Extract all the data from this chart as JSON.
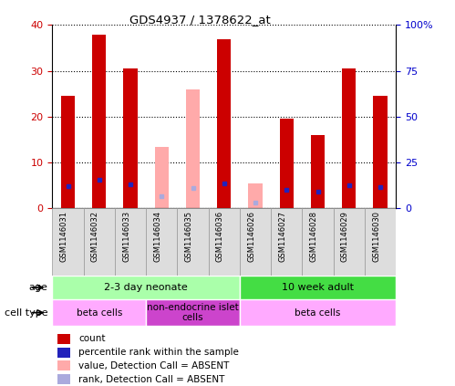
{
  "title": "GDS4937 / 1378622_at",
  "samples": [
    "GSM1146031",
    "GSM1146032",
    "GSM1146033",
    "GSM1146034",
    "GSM1146035",
    "GSM1146036",
    "GSM1146026",
    "GSM1146027",
    "GSM1146028",
    "GSM1146029",
    "GSM1146030"
  ],
  "count_values": [
    24.5,
    38.0,
    30.5,
    0,
    0,
    37.0,
    0,
    19.5,
    16.0,
    30.5,
    24.5
  ],
  "count_absent": [
    0,
    0,
    0,
    13.5,
    26.0,
    0,
    5.5,
    0,
    0,
    0,
    0
  ],
  "rank_values": [
    12.0,
    15.5,
    13.0,
    0,
    0,
    13.5,
    0,
    10.0,
    9.0,
    12.5,
    11.5
  ],
  "rank_absent": [
    0,
    0,
    0,
    6.5,
    11.0,
    0,
    3.0,
    0,
    0,
    0,
    0
  ],
  "ylim_left": [
    0,
    40
  ],
  "ylim_right": [
    0,
    100
  ],
  "left_ticks": [
    0,
    10,
    20,
    30,
    40
  ],
  "right_ticks": [
    0,
    25,
    50,
    75,
    100
  ],
  "right_tick_labels": [
    "0",
    "25",
    "50",
    "75",
    "100%"
  ],
  "bar_color_red": "#cc0000",
  "bar_color_pink": "#ffaaaa",
  "dot_color_blue": "#2222bb",
  "dot_color_lightblue": "#aaaadd",
  "ylabel_left_color": "#cc0000",
  "ylabel_right_color": "#0000cc",
  "age_groups": [
    {
      "label": "2-3 day neonate",
      "start": 0,
      "end": 6,
      "color": "#aaffaa"
    },
    {
      "label": "10 week adult",
      "start": 6,
      "end": 11,
      "color": "#44dd44"
    }
  ],
  "cell_type_groups": [
    {
      "label": "beta cells",
      "start": 0,
      "end": 3,
      "color": "#ffaaff"
    },
    {
      "label": "non-endocrine islet\ncells",
      "start": 3,
      "end": 6,
      "color": "#cc44cc"
    },
    {
      "label": "beta cells",
      "start": 6,
      "end": 11,
      "color": "#ffaaff"
    }
  ],
  "legend_items": [
    {
      "label": "count",
      "color": "#cc0000"
    },
    {
      "label": "percentile rank within the sample",
      "color": "#2222bb"
    },
    {
      "label": "value, Detection Call = ABSENT",
      "color": "#ffaaaa"
    },
    {
      "label": "rank, Detection Call = ABSENT",
      "color": "#aaaadd"
    }
  ]
}
